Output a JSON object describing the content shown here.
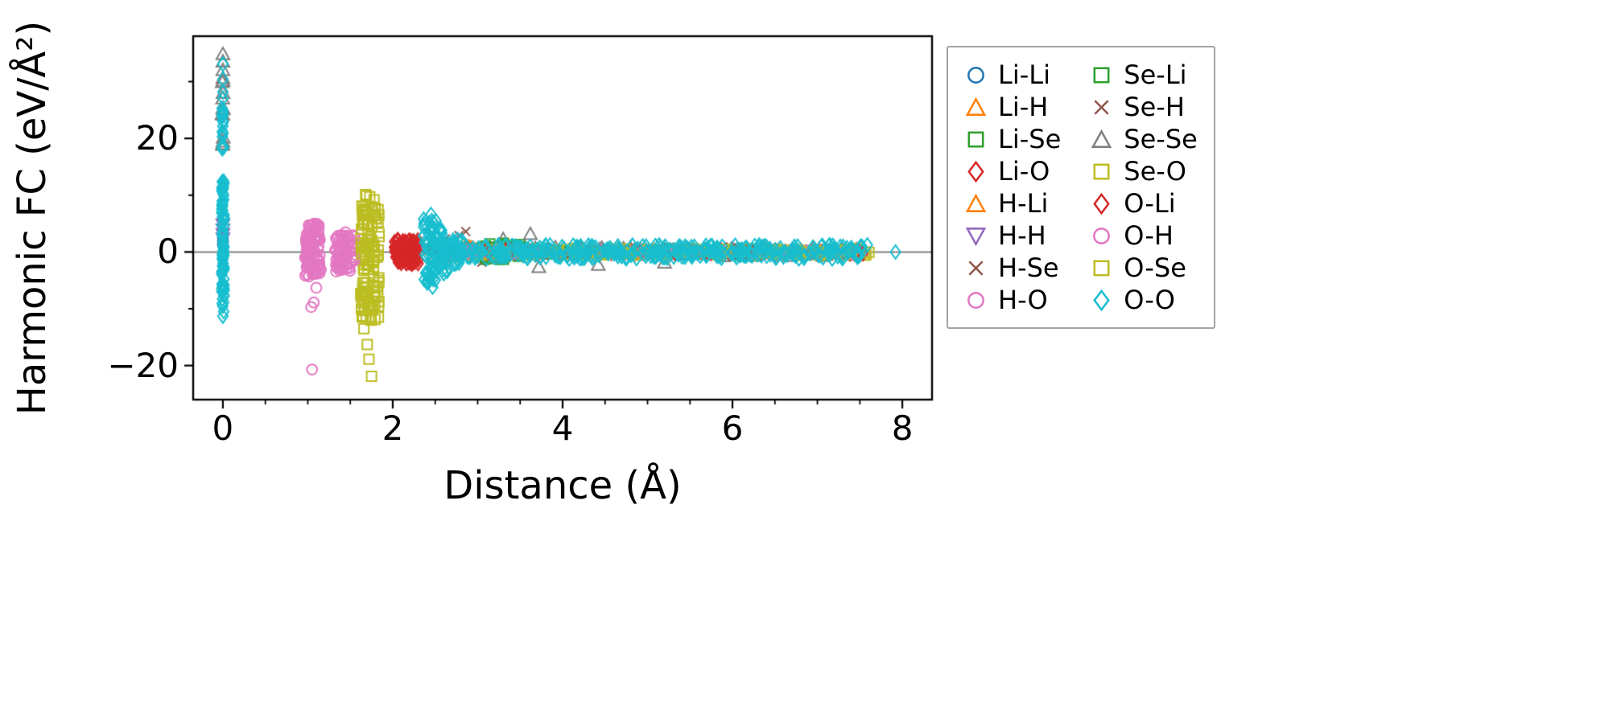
{
  "figure": {
    "background": "#ffffff",
    "axis_color": "#000000"
  },
  "legend": {
    "columns": 2,
    "order": "column-major",
    "border_color": "#a3a3a3"
  },
  "chart_data": {
    "type": "scatter",
    "title": "",
    "xlabel": "Distance (Å)",
    "ylabel": "Harmonic FC (eV/Å²)",
    "xlim": [
      -0.35,
      8.35
    ],
    "ylim": [
      -26,
      38
    ],
    "xticks": [
      0,
      2,
      4,
      6,
      8
    ],
    "xtick_labels": [
      "0",
      "2",
      "4",
      "6",
      "8"
    ],
    "yticks": [
      -20,
      0,
      20
    ],
    "ytick_labels": [
      "−20",
      "0",
      "20"
    ],
    "x_minor_ticks": [
      0.5,
      1,
      1.5,
      2.5,
      3,
      3.5,
      4.5,
      5,
      5.5,
      6.5,
      7,
      7.5
    ],
    "y_minor_ticks": [
      -10,
      10,
      30
    ],
    "zero_line": {
      "y": 0,
      "color": "#808080"
    },
    "grid": false,
    "legend_position": "outside-right",
    "series": [
      {
        "name": "Li-Li",
        "marker": "circle",
        "color": "#1f77b4",
        "points": [
          [
            0,
            3.4
          ],
          [
            0,
            2.6
          ],
          [
            0,
            1.9
          ],
          [
            0,
            1.3
          ]
        ],
        "clusters": [
          {
            "x": [
              2.9,
              7.5
            ],
            "y": [
              -0.35,
              0.35
            ],
            "n": 55
          }
        ]
      },
      {
        "name": "Li-H",
        "marker": "triangle-up",
        "color": "#ff7f0e",
        "points": [],
        "clusters": [
          {
            "x": [
              2.45,
              3.2
            ],
            "y": [
              -0.9,
              0.9
            ],
            "n": 28
          },
          {
            "x": [
              3.2,
              7.4
            ],
            "y": [
              -0.35,
              0.35
            ],
            "n": 45
          }
        ]
      },
      {
        "name": "Li-Se",
        "marker": "square",
        "color": "#2ca02c",
        "points": [],
        "clusters": [
          {
            "x": [
              3.05,
              3.5
            ],
            "y": [
              -1.6,
              1.6
            ],
            "n": 26
          },
          {
            "x": [
              3.5,
              7.5
            ],
            "y": [
              -0.4,
              0.4
            ],
            "n": 48
          }
        ]
      },
      {
        "name": "Li-O",
        "marker": "diamond",
        "color": "#d62728",
        "points": [],
        "clusters": [
          {
            "x": [
              2.02,
              2.3
            ],
            "y": [
              -2.2,
              2.2
            ],
            "n": 80
          },
          {
            "x": [
              3.0,
              7.55
            ],
            "y": [
              -0.4,
              0.4
            ],
            "n": 55
          }
        ]
      },
      {
        "name": "H-Li",
        "marker": "triangle-up",
        "color": "#ff7f0e",
        "points": [],
        "clusters": [
          {
            "x": [
              2.45,
              3.2
            ],
            "y": [
              -0.9,
              0.9
            ],
            "n": 26
          },
          {
            "x": [
              3.2,
              7.4
            ],
            "y": [
              -0.3,
              0.3
            ],
            "n": 40
          }
        ]
      },
      {
        "name": "H-H",
        "marker": "triangle-down",
        "color": "#9467bd",
        "points": [
          [
            0,
            4.9
          ],
          [
            0,
            4.0
          ],
          [
            0,
            3.2
          ],
          [
            0,
            2.4
          ]
        ],
        "clusters": [
          {
            "x": [
              2.2,
              7.3
            ],
            "y": [
              -0.3,
              0.3
            ],
            "n": 40
          }
        ]
      },
      {
        "name": "H-Se",
        "marker": "x",
        "color": "#8c564b",
        "points": [
          [
            2.86,
            3.6
          ],
          [
            2.62,
            2.3
          ],
          [
            2.48,
            -1.3
          ],
          [
            3.05,
            -1.8
          ]
        ],
        "clusters": [
          {
            "x": [
              2.4,
              3.3
            ],
            "y": [
              -1.2,
              1.2
            ],
            "n": 25
          },
          {
            "x": [
              3.3,
              7.5
            ],
            "y": [
              -0.55,
              0.55
            ],
            "n": 55
          }
        ]
      },
      {
        "name": "H-O",
        "marker": "circle",
        "color": "#e377c2",
        "points": [
          [
            1.05,
            -20.7
          ],
          [
            1.04,
            -9.7
          ],
          [
            1.1,
            -6.3
          ]
        ],
        "clusters": [
          {
            "x": [
              0.96,
              1.14
            ],
            "y": [
              -4.5,
              5.0
            ],
            "n": 55
          },
          {
            "x": [
              1.3,
              1.55
            ],
            "y": [
              -3.6,
              3.4
            ],
            "n": 40
          },
          {
            "x": [
              2.5,
              7.5
            ],
            "y": [
              -0.45,
              0.45
            ],
            "n": 55
          }
        ]
      },
      {
        "name": "Se-Li",
        "marker": "square",
        "color": "#2ca02c",
        "points": [],
        "clusters": [
          {
            "x": [
              3.05,
              3.5
            ],
            "y": [
              -1.4,
              1.4
            ],
            "n": 22
          },
          {
            "x": [
              3.5,
              7.5
            ],
            "y": [
              -0.4,
              0.4
            ],
            "n": 45
          }
        ]
      },
      {
        "name": "Se-H",
        "marker": "x",
        "color": "#8c564b",
        "points": [
          [
            2.78,
            2.9
          ]
        ],
        "clusters": [
          {
            "x": [
              2.4,
              3.3
            ],
            "y": [
              -1.0,
              1.0
            ],
            "n": 20
          },
          {
            "x": [
              3.3,
              7.5
            ],
            "y": [
              -0.5,
              0.5
            ],
            "n": 50
          }
        ]
      },
      {
        "name": "Se-Se",
        "marker": "triangle-up",
        "color": "#7f7f7f",
        "points": [
          [
            0,
            34.8
          ],
          [
            0,
            33.5
          ],
          [
            0,
            32.0
          ],
          [
            0,
            30.6
          ],
          [
            0,
            25.3
          ],
          [
            0,
            19.4
          ],
          [
            3.62,
            3.1
          ],
          [
            3.3,
            2.2
          ],
          [
            3.72,
            -2.7
          ],
          [
            4.42,
            -2.3
          ],
          [
            5.2,
            -1.9
          ]
        ],
        "clusters": [
          {
            "x": [
              -0.01,
              0.01
            ],
            "y": [
              18,
              33
            ],
            "n": 10
          },
          {
            "x": [
              3.0,
              7.5
            ],
            "y": [
              -0.8,
              0.8
            ],
            "n": 55
          }
        ]
      },
      {
        "name": "Se-O",
        "marker": "square",
        "color": "#bcbd22",
        "points": [
          [
            1.68,
            10.1
          ],
          [
            1.73,
            9.7
          ],
          [
            1.78,
            9.2
          ],
          [
            1.66,
            -13.5
          ],
          [
            1.7,
            -16.3
          ],
          [
            1.72,
            -18.9
          ],
          [
            1.75,
            -21.9
          ]
        ],
        "clusters": [
          {
            "x": [
              1.62,
              1.84
            ],
            "y": [
              -12.5,
              8.5
            ],
            "n": 70
          },
          {
            "x": [
              3.0,
              7.65
            ],
            "y": [
              -0.6,
              0.6
            ],
            "n": 70
          }
        ]
      },
      {
        "name": "O-Li",
        "marker": "diamond",
        "color": "#d62728",
        "points": [],
        "clusters": [
          {
            "x": [
              2.02,
              2.3
            ],
            "y": [
              -2.0,
              2.0
            ],
            "n": 70
          },
          {
            "x": [
              3.0,
              7.55
            ],
            "y": [
              -0.4,
              0.4
            ],
            "n": 50
          }
        ]
      },
      {
        "name": "O-H",
        "marker": "circle",
        "color": "#e377c2",
        "points": [
          [
            1.07,
            -8.9
          ]
        ],
        "clusters": [
          {
            "x": [
              0.97,
              1.16
            ],
            "y": [
              -4.3,
              4.8
            ],
            "n": 50
          },
          {
            "x": [
              1.3,
              1.55
            ],
            "y": [
              -3.3,
              3.5
            ],
            "n": 35
          },
          {
            "x": [
              2.5,
              7.5
            ],
            "y": [
              -0.4,
              0.4
            ],
            "n": 50
          }
        ]
      },
      {
        "name": "O-Se",
        "marker": "square",
        "color": "#bcbd22",
        "points": [
          [
            1.69,
            9.9
          ],
          [
            1.74,
            -11.8
          ]
        ],
        "clusters": [
          {
            "x": [
              1.62,
              1.84
            ],
            "y": [
              -12.0,
              8.0
            ],
            "n": 60
          },
          {
            "x": [
              3.0,
              7.65
            ],
            "y": [
              -0.6,
              0.6
            ],
            "n": 65
          }
        ]
      },
      {
        "name": "O-O",
        "marker": "diamond",
        "color": "#17becf",
        "points": [
          [
            0,
            33.1
          ],
          [
            0,
            30.4
          ],
          [
            0,
            28.2
          ],
          [
            0,
            27.1
          ],
          [
            0,
            -11.3
          ],
          [
            2.45,
            6.6
          ],
          [
            2.47,
            -6.2
          ],
          [
            7.92,
            0.0
          ]
        ],
        "clusters": [
          {
            "x": [
              -0.015,
              0.015
            ],
            "y": [
              -10.8,
              13.2
            ],
            "n": 85
          },
          {
            "x": [
              -0.01,
              0.01
            ],
            "y": [
              17.8,
              26.0
            ],
            "n": 18
          },
          {
            "x": [
              2.36,
              2.52
            ],
            "y": [
              -5.8,
              6.2
            ],
            "n": 55
          },
          {
            "x": [
              2.52,
              2.68
            ],
            "y": [
              -4.0,
              4.2
            ],
            "n": 38
          },
          {
            "x": [
              2.68,
              2.82
            ],
            "y": [
              -2.2,
              2.3
            ],
            "n": 28
          },
          {
            "x": [
              2.82,
              7.6
            ],
            "y": [
              -1.25,
              1.25
            ],
            "n": 330
          }
        ]
      }
    ]
  }
}
